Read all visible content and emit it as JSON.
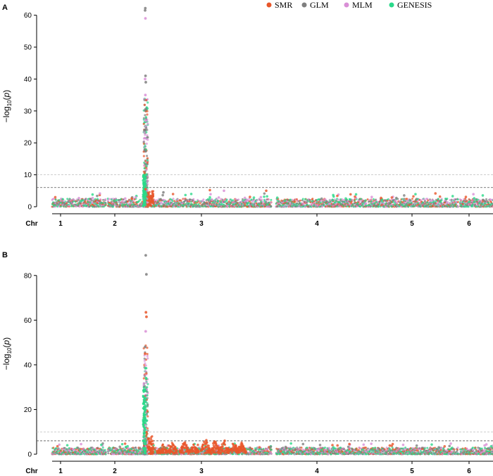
{
  "chart_data": [
    {
      "panel_label": "A",
      "type": "scatter",
      "ylabel": "−log10(p)",
      "ylim": [
        0,
        63
      ],
      "yticks": [
        0,
        10,
        20,
        30,
        40,
        50,
        60
      ],
      "xaxis_label": "Chr",
      "chromosomes": [
        "1",
        "2",
        "3",
        "4",
        "5",
        "6"
      ],
      "thresholds": [
        {
          "y": 10,
          "style": "dashed",
          "color": "#bdbdbd"
        },
        {
          "y": 6,
          "style": "dashed",
          "color": "#555555"
        }
      ],
      "series": [
        {
          "name": "SMR",
          "color": "#e8562a"
        },
        {
          "name": "GLM",
          "color": "#7f7f7f"
        },
        {
          "name": "MLM",
          "color": "#d98fd6"
        },
        {
          "name": "GENESIS",
          "color": "#2ad98a"
        }
      ],
      "baseline_max": 2.5,
      "peak": {
        "position": 2.38,
        "top_points": [
          {
            "series": "GLM",
            "y": 62.2
          },
          {
            "series": "GLM",
            "y": 61.5
          },
          {
            "series": "MLM",
            "y": 59.0
          },
          {
            "series": "GLM",
            "y": 41.0
          },
          {
            "series": "MLM",
            "y": 40.0
          },
          {
            "series": "GLM",
            "y": 39.0
          },
          {
            "series": "MLM",
            "y": 35.0
          },
          {
            "series": "GLM",
            "y": 30.5
          },
          {
            "series": "MLM",
            "y": 27.0
          },
          {
            "series": "GLM",
            "y": 24.0
          },
          {
            "series": "GENESIS",
            "y": 10.0
          },
          {
            "series": "SMR",
            "y": 5.5
          }
        ]
      },
      "highlights": [
        {
          "series": "SMR",
          "x": 3.02,
          "y": 5.2
        },
        {
          "series": "MLM",
          "x": 3.22,
          "y": 5.0
        },
        {
          "series": "SMR",
          "x": 3.58,
          "y": 5.0
        },
        {
          "series": "GLM",
          "x": 2.58,
          "y": 4.5
        }
      ]
    },
    {
      "panel_label": "B",
      "type": "scatter",
      "ylabel": "−log10(p)",
      "ylim": [
        0,
        90
      ],
      "yticks": [
        0,
        20,
        40,
        60,
        80
      ],
      "xaxis_label": "Chr",
      "chromosomes": [
        "1",
        "2",
        "3",
        "4",
        "5",
        "6"
      ],
      "thresholds": [
        {
          "y": 10,
          "style": "dashed",
          "color": "#bdbdbd"
        },
        {
          "y": 6,
          "style": "dashed",
          "color": "#555555"
        }
      ],
      "series": [
        {
          "name": "SMR",
          "color": "#e8562a"
        },
        {
          "name": "GLM",
          "color": "#7f7f7f"
        },
        {
          "name": "MLM",
          "color": "#d98fd6"
        },
        {
          "name": "GENESIS",
          "color": "#2ad98a"
        }
      ],
      "baseline_max": 3.0,
      "peak": {
        "position": 2.38,
        "top_points": [
          {
            "series": "GLM",
            "y": 89.0
          },
          {
            "series": "GLM",
            "y": 80.5
          },
          {
            "series": "SMR",
            "y": 63.5
          },
          {
            "series": "SMR",
            "y": 61.5
          },
          {
            "series": "MLM",
            "y": 55.0
          },
          {
            "series": "GLM",
            "y": 48.0
          },
          {
            "series": "SMR",
            "y": 45.0
          },
          {
            "series": "GENESIS",
            "y": 34.0
          },
          {
            "series": "GENESIS",
            "y": 25.0
          },
          {
            "series": "GENESIS",
            "y": 15.0
          }
        ]
      },
      "secondary_signal": {
        "series": "SMR",
        "x_start": 2.5,
        "x_end": 3.38,
        "max": 8.0
      }
    }
  ]
}
